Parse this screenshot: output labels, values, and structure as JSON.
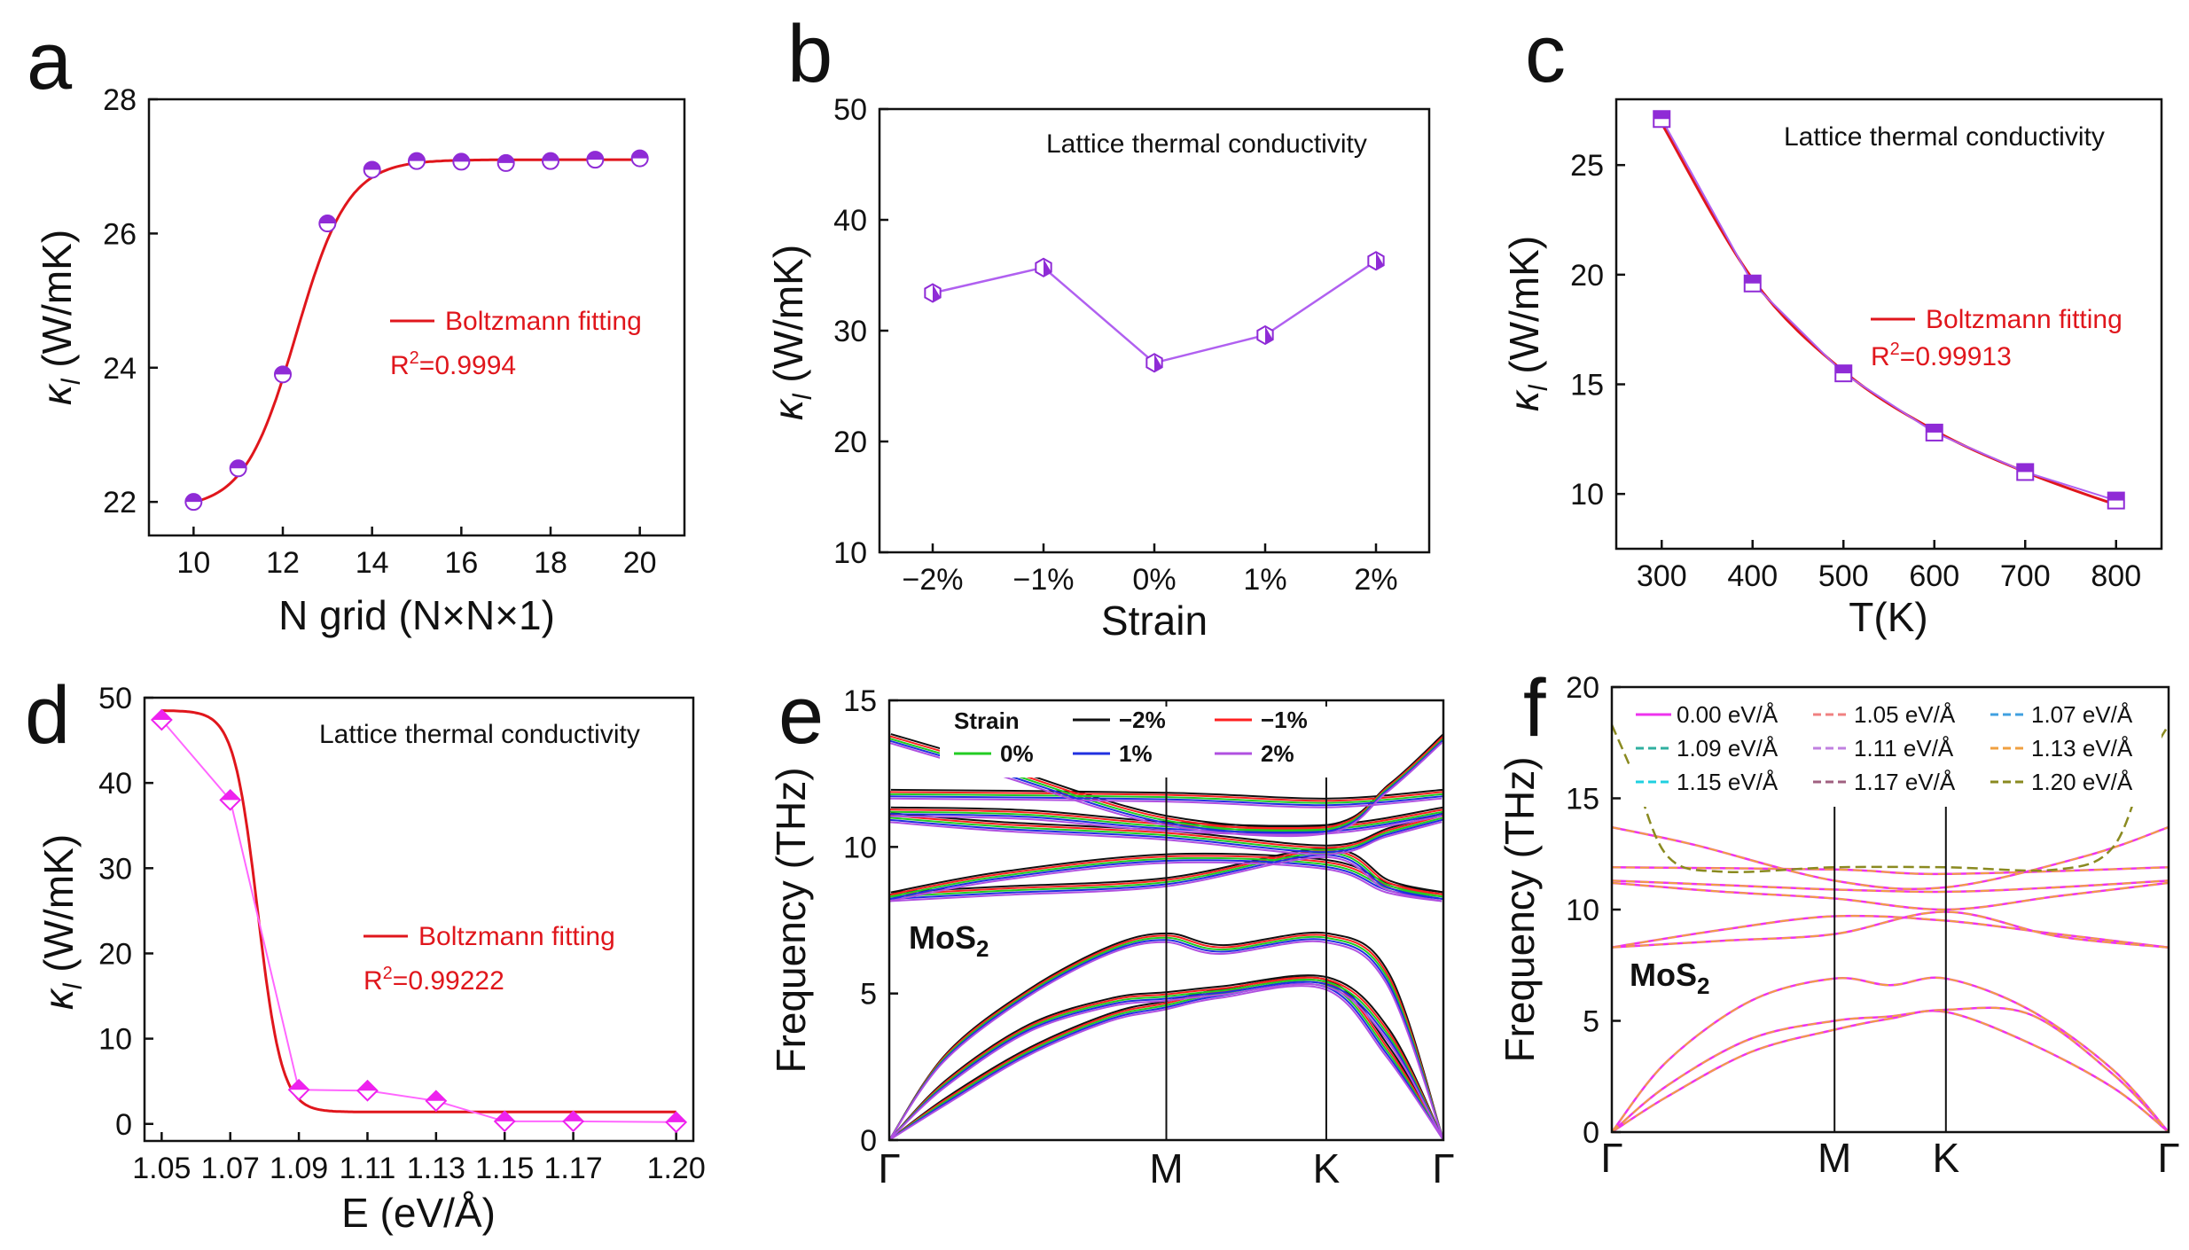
{
  "figure": {
    "description_hidden": false,
    "colors": {
      "axis": "#111111",
      "fit": "#e0161c",
      "markerPurple": "#8f2bd6",
      "markerMagenta": "#ee22ee",
      "lineViolet": "#b060f0",
      "linePink": "#ff66ff"
    }
  },
  "chart_data": [
    {
      "panel": "a",
      "type": "scatter",
      "xlabel": "N grid (N×N×1)",
      "ylabel": "κl (W/mK)",
      "ylabel_main": "κ",
      "ylabel_sub": "l",
      "ylabel_rest": " (W/mK)",
      "xlim": [
        9,
        21
      ],
      "ylim": [
        21.5,
        28
      ],
      "xticks": [
        10,
        12,
        14,
        16,
        18,
        20
      ],
      "yticks": [
        22,
        24,
        26,
        28
      ],
      "x": [
        10,
        11,
        12,
        13,
        14,
        15,
        16,
        17,
        18,
        19,
        20
      ],
      "y": [
        22.0,
        22.5,
        23.9,
        26.15,
        26.95,
        27.08,
        27.07,
        27.05,
        27.08,
        27.1,
        27.12
      ],
      "fit": {
        "type": "boltzmann",
        "A1": 21.9,
        "A2": 27.1,
        "x0": 12.3,
        "dx": 0.58
      },
      "legend": "Boltzmann fitting",
      "r2_label": "R",
      "r2_sup": "2",
      "r2_value": "=0.9994"
    },
    {
      "panel": "b",
      "type": "line",
      "xlabel": "Strain",
      "ylabel_main": "κ",
      "ylabel_sub": "l",
      "ylabel_rest": " (W/mK)",
      "categories": [
        "−2%",
        "−1%",
        "0%",
        "1%",
        "2%"
      ],
      "values": [
        33.4,
        35.7,
        27.1,
        29.6,
        36.3
      ],
      "ylim": [
        10,
        50
      ],
      "yticks": [
        10,
        20,
        30,
        40,
        50
      ],
      "title": "Lattice thermal conductivity"
    },
    {
      "panel": "c",
      "type": "line",
      "xlabel": "T(K)",
      "ylabel_main": "κ",
      "ylabel_sub": "l",
      "ylabel_rest": " (W/mK)",
      "x": [
        300,
        400,
        500,
        600,
        700,
        800
      ],
      "y": [
        27.1,
        19.6,
        15.5,
        12.8,
        11.0,
        9.7
      ],
      "xlim": [
        250,
        850
      ],
      "ylim": [
        7.5,
        28.0
      ],
      "xticks": [
        300,
        400,
        500,
        600,
        700,
        800
      ],
      "yticks": [
        10,
        15,
        20,
        25
      ],
      "fit": {
        "type": "decay",
        "points": [
          [
            300,
            26.9
          ],
          [
            400,
            19.8
          ],
          [
            500,
            15.6
          ],
          [
            600,
            12.9
          ],
          [
            700,
            11.0
          ],
          [
            800,
            9.5
          ]
        ]
      },
      "title": "Lattice thermal conductivity",
      "legend": "Boltzmann fitting",
      "r2_label": "R",
      "r2_sup": "2",
      "r2_value": "=0.99913"
    },
    {
      "panel": "d",
      "type": "line",
      "xlabel": "E (eV/Å)",
      "ylabel_main": "κ",
      "ylabel_sub": "l",
      "ylabel_rest": " (W/mK)",
      "x": [
        1.05,
        1.07,
        1.09,
        1.11,
        1.13,
        1.15,
        1.17,
        1.2
      ],
      "y": [
        47.4,
        38.0,
        4.0,
        3.9,
        2.7,
        0.3,
        0.3,
        0.2
      ],
      "xlim": [
        1.045,
        1.205
      ],
      "ylim": [
        -2,
        50
      ],
      "xticks": [
        "1.05",
        "1.07",
        "1.09",
        "1.11",
        "1.13",
        "1.15",
        "1.17",
        "1.20"
      ],
      "yticks": [
        0,
        10,
        20,
        30,
        40,
        50
      ],
      "fit": {
        "type": "boltzmann",
        "A1": 48.5,
        "A2": 1.4,
        "x0": 1.078,
        "dx": 0.0035
      },
      "title": "Lattice thermal conductivity",
      "legend": "Boltzmann fitting",
      "r2_label": "R",
      "r2_sup": "2",
      "r2_value": "=0.99222"
    },
    {
      "panel": "e",
      "type": "line",
      "ylabel": "Frequency (THz)",
      "ylim": [
        0,
        15
      ],
      "yticks": [
        0,
        5,
        10,
        15
      ],
      "kpoints": [
        "Γ",
        "M",
        "K",
        "Γ"
      ],
      "kpoint_positions": [
        0,
        0.5,
        0.7887,
        1
      ],
      "material": "MoS",
      "material_sub": "2",
      "legend_title": "Strain",
      "series": [
        {
          "name": "−2%",
          "color": "#111111",
          "shift": 0.3
        },
        {
          "name": "−1%",
          "color": "#ff2020",
          "shift": 0.15
        },
        {
          "name": "0%",
          "color": "#22cc22",
          "shift": 0.0
        },
        {
          "name": "1%",
          "color": "#2030e0",
          "shift": -0.15
        },
        {
          "name": "2%",
          "color": "#b050e0",
          "shift": -0.3
        }
      ],
      "bands": [
        [
          [
            0,
            0
          ],
          [
            0.1,
            1.3
          ],
          [
            0.25,
            3.0
          ],
          [
            0.4,
            4.2
          ],
          [
            0.5,
            4.6
          ],
          [
            0.6,
            5.0
          ],
          [
            0.7887,
            5.3
          ],
          [
            0.9,
            3.0
          ],
          [
            1,
            0
          ]
        ],
        [
          [
            0,
            0
          ],
          [
            0.1,
            1.9
          ],
          [
            0.25,
            3.8
          ],
          [
            0.4,
            4.7
          ],
          [
            0.5,
            4.9
          ],
          [
            0.6,
            5.1
          ],
          [
            0.7887,
            5.4
          ],
          [
            0.9,
            3.6
          ],
          [
            1,
            0
          ]
        ],
        [
          [
            0,
            0
          ],
          [
            0.1,
            2.8
          ],
          [
            0.25,
            5.0
          ],
          [
            0.4,
            6.5
          ],
          [
            0.5,
            6.9
          ],
          [
            0.6,
            6.5
          ],
          [
            0.7887,
            6.9
          ],
          [
            0.9,
            5.5
          ],
          [
            1,
            0
          ]
        ],
        [
          [
            0,
            8.3
          ],
          [
            0.2,
            9.0
          ],
          [
            0.5,
            9.6
          ],
          [
            0.7887,
            9.4
          ],
          [
            0.9,
            8.6
          ],
          [
            1,
            8.3
          ]
        ],
        [
          [
            0,
            8.3
          ],
          [
            0.2,
            8.5
          ],
          [
            0.5,
            8.8
          ],
          [
            0.7887,
            9.8
          ],
          [
            0.9,
            8.7
          ],
          [
            1,
            8.3
          ]
        ],
        [
          [
            0,
            11.0
          ],
          [
            0.2,
            10.7
          ],
          [
            0.5,
            10.4
          ],
          [
            0.7887,
            9.9
          ],
          [
            0.9,
            10.5
          ],
          [
            1,
            11.0
          ]
        ],
        [
          [
            0,
            11.2
          ],
          [
            0.25,
            11.1
          ],
          [
            0.5,
            10.7
          ],
          [
            0.7887,
            10.6
          ],
          [
            1,
            11.2
          ]
        ],
        [
          [
            0,
            11.8
          ],
          [
            0.5,
            11.7
          ],
          [
            0.7887,
            11.5
          ],
          [
            1,
            11.8
          ]
        ],
        [
          [
            0,
            13.7
          ],
          [
            0.2,
            12.6
          ],
          [
            0.5,
            10.9
          ],
          [
            0.7887,
            10.6
          ],
          [
            0.9,
            12.0
          ],
          [
            1,
            13.7
          ]
        ]
      ]
    },
    {
      "panel": "f",
      "type": "line",
      "ylabel": "Frequency (THz)",
      "ylim": [
        0,
        20
      ],
      "yticks": [
        0,
        5,
        10,
        15,
        20
      ],
      "kpoints": [
        "Γ",
        "M",
        "K",
        "Γ"
      ],
      "kpoint_positions": [
        0,
        0.4,
        0.6,
        1
      ],
      "material": "MoS",
      "material_sub": "2",
      "series": [
        {
          "name": "0.00 eV/Å",
          "color": "#ee33ee"
        },
        {
          "name": "1.05 eV/Å",
          "color": "#f08080"
        },
        {
          "name": "1.07 eV/Å",
          "color": "#40a0e0"
        },
        {
          "name": "1.09 eV/Å",
          "color": "#30b0a0"
        },
        {
          "name": "1.11 eV/Å",
          "color": "#c080e0"
        },
        {
          "name": "1.13 eV/Å",
          "color": "#f0a040"
        },
        {
          "name": "1.15 eV/Å",
          "color": "#20d0e0"
        },
        {
          "name": "1.17 eV/Å",
          "color": "#a06080"
        },
        {
          "name": "1.20 eV/Å",
          "color": "#8a8a20"
        }
      ],
      "bands": [
        [
          [
            0,
            0
          ],
          [
            0.1,
            1.6
          ],
          [
            0.25,
            3.6
          ],
          [
            0.4,
            4.6
          ],
          [
            0.5,
            5.1
          ],
          [
            0.6,
            5.4
          ],
          [
            0.75,
            4.0
          ],
          [
            0.9,
            2.0
          ],
          [
            1,
            0
          ]
        ],
        [
          [
            0,
            0
          ],
          [
            0.1,
            2.1
          ],
          [
            0.25,
            4.2
          ],
          [
            0.4,
            5.0
          ],
          [
            0.5,
            5.2
          ],
          [
            0.6,
            5.5
          ],
          [
            0.75,
            5.3
          ],
          [
            0.9,
            2.6
          ],
          [
            1,
            0
          ]
        ],
        [
          [
            0,
            0
          ],
          [
            0.1,
            3.2
          ],
          [
            0.25,
            5.9
          ],
          [
            0.4,
            6.9
          ],
          [
            0.5,
            6.6
          ],
          [
            0.6,
            6.9
          ],
          [
            0.75,
            5.5
          ],
          [
            0.9,
            2.8
          ],
          [
            1,
            0
          ]
        ],
        [
          [
            0,
            8.3
          ],
          [
            0.2,
            9.1
          ],
          [
            0.4,
            9.7
          ],
          [
            0.6,
            9.5
          ],
          [
            0.8,
            8.9
          ],
          [
            1,
            8.3
          ]
        ],
        [
          [
            0,
            8.3
          ],
          [
            0.2,
            8.6
          ],
          [
            0.4,
            8.9
          ],
          [
            0.6,
            9.9
          ],
          [
            0.8,
            8.8
          ],
          [
            1,
            8.3
          ]
        ],
        [
          [
            0,
            11.2
          ],
          [
            0.2,
            10.8
          ],
          [
            0.4,
            10.5
          ],
          [
            0.6,
            10.0
          ],
          [
            0.8,
            10.6
          ],
          [
            1,
            11.2
          ]
        ],
        [
          [
            0,
            11.3
          ],
          [
            0.2,
            11.1
          ],
          [
            0.4,
            10.9
          ],
          [
            0.6,
            10.8
          ],
          [
            0.8,
            11.0
          ],
          [
            1,
            11.3
          ]
        ],
        [
          [
            0,
            11.9
          ],
          [
            0.4,
            11.8
          ],
          [
            0.6,
            11.6
          ],
          [
            1,
            11.9
          ]
        ],
        [
          [
            0,
            13.7
          ],
          [
            0.15,
            12.9
          ],
          [
            0.4,
            11.3
          ],
          [
            0.6,
            11.0
          ],
          [
            0.85,
            12.4
          ],
          [
            1,
            13.7
          ]
        ]
      ],
      "extra_band": [
        [
          0,
          18.3
        ],
        [
          0.04,
          16.0
        ],
        [
          0.1,
          12.4
        ],
        [
          0.2,
          11.7
        ],
        [
          0.4,
          11.9
        ],
        [
          0.6,
          11.9
        ],
        [
          0.8,
          11.8
        ],
        [
          0.9,
          12.8
        ],
        [
          0.96,
          16.5
        ],
        [
          1,
          18.3
        ]
      ]
    }
  ]
}
